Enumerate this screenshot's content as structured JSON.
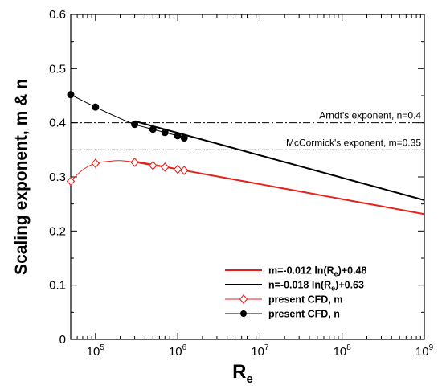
{
  "chart_data": {
    "type": "line",
    "xscale": "log",
    "xlim": [
      50000,
      1000000000
    ],
    "ylim": [
      0,
      0.6
    ],
    "xlabel": "R",
    "xlabel_sub": "e",
    "ylabel": "Scaling exponent, m & n",
    "grid": false,
    "legend_position": "bottom-right",
    "y_ticks": [
      {
        "value": 0,
        "label": "0"
      },
      {
        "value": 0.1,
        "label": "0.1"
      },
      {
        "value": 0.2,
        "label": "0.2"
      },
      {
        "value": 0.3,
        "label": "0.3"
      },
      {
        "value": 0.4,
        "label": "0.4"
      },
      {
        "value": 0.5,
        "label": "0.5"
      },
      {
        "value": 0.6,
        "label": "0.6"
      }
    ],
    "x_ticks": [
      {
        "value": 100000,
        "base": "10",
        "exp": "5"
      },
      {
        "value": 1000000,
        "base": "10",
        "exp": "6"
      },
      {
        "value": 10000000,
        "base": "10",
        "exp": "7"
      },
      {
        "value": 100000000,
        "base": "10",
        "exp": "8"
      },
      {
        "value": 1000000000,
        "base": "10",
        "exp": "9"
      }
    ],
    "reference_lines": [
      {
        "y": 0.4,
        "label": "Arndt's exponent, n=0.4",
        "style": "dash-dot",
        "color": "#000000"
      },
      {
        "y": 0.35,
        "label": "McCormick's exponent, m=0.35",
        "style": "dash-dot",
        "color": "#000000"
      }
    ],
    "series": [
      {
        "name": "m=-0.012 ln(Re)+0.48",
        "legend_parts": {
          "pre": "m=-0.012 ln(R",
          "sub": "e",
          "post": ")+0.48"
        },
        "kind": "fit",
        "color": "#e8201a",
        "x_range": [
          300000,
          1000000000
        ],
        "a": -0.012,
        "b": 0.48
      },
      {
        "name": "n=-0.018 ln(Re)+0.63",
        "legend_parts": {
          "pre": "n=-0.018 ln(R",
          "sub": "e",
          "post": ")+0.63"
        },
        "kind": "fit",
        "color": "#000000",
        "x_range": [
          300000,
          1000000000
        ],
        "a": -0.018,
        "b": 0.63
      },
      {
        "name": "present CFD, m",
        "kind": "data",
        "marker": "diamond-open",
        "color": "#e8201a",
        "x": [
          50000,
          100000,
          300000,
          500000,
          700000,
          1000000,
          1200000
        ],
        "y": [
          0.292,
          0.325,
          0.327,
          0.321,
          0.318,
          0.314,
          0.312
        ],
        "curve": [
          [
            50000,
            0.292
          ],
          [
            70000,
            0.313
          ],
          [
            100000,
            0.325
          ],
          [
            150000,
            0.329
          ],
          [
            200000,
            0.33
          ],
          [
            300000,
            0.327
          ],
          [
            500000,
            0.321
          ],
          [
            700000,
            0.318
          ],
          [
            1000000,
            0.314
          ],
          [
            1200000,
            0.312
          ]
        ]
      },
      {
        "name": "present CFD, n",
        "kind": "data",
        "marker": "circle-filled",
        "color": "#000000",
        "x": [
          50000,
          100000,
          300000,
          500000,
          700000,
          1000000,
          1200000
        ],
        "y": [
          0.452,
          0.429,
          0.397,
          0.388,
          0.382,
          0.376,
          0.372
        ],
        "curve": [
          [
            50000,
            0.452
          ],
          [
            100000,
            0.429
          ],
          [
            200000,
            0.408
          ],
          [
            300000,
            0.397
          ],
          [
            500000,
            0.388
          ],
          [
            700000,
            0.382
          ],
          [
            1000000,
            0.376
          ],
          [
            1200000,
            0.372
          ]
        ]
      }
    ]
  }
}
